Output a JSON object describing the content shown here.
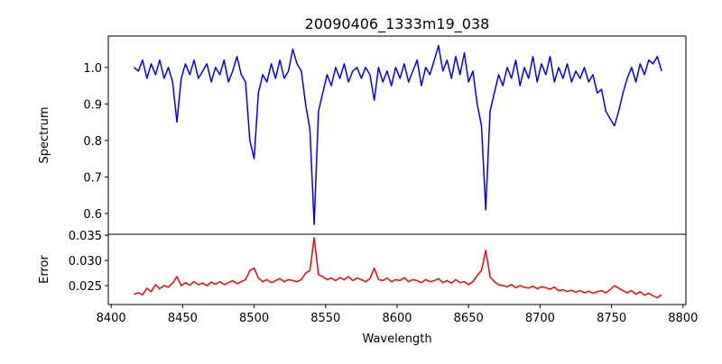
{
  "chart_data": [
    {
      "type": "line",
      "panel": "top",
      "title": "20090406_1333m19_038",
      "xlabel": "",
      "ylabel": "Spectrum",
      "xlim": [
        8398,
        8802
      ],
      "ylim": [
        0.543,
        1.086
      ],
      "yticks": [
        0.6,
        0.7,
        0.8,
        0.9,
        1.0
      ],
      "ytick_labels": [
        "0.6",
        "0.7",
        "0.8",
        "0.9",
        "1.0"
      ],
      "series": [
        {
          "name": "Spectrum",
          "color": "#0000ff",
          "x_start": 8416,
          "x_step": 3,
          "values": [
            1.0,
            0.99,
            1.02,
            0.97,
            1.01,
            0.98,
            1.02,
            0.97,
            1.0,
            0.96,
            0.85,
            0.97,
            1.01,
            0.98,
            1.02,
            0.97,
            0.99,
            1.01,
            0.96,
            1.0,
            0.98,
            1.02,
            0.96,
            0.99,
            1.03,
            0.98,
            0.96,
            0.8,
            0.75,
            0.93,
            0.98,
            0.96,
            1.01,
            0.97,
            1.02,
            0.97,
            0.99,
            1.05,
            1.01,
            0.99,
            0.9,
            0.83,
            0.57,
            0.88,
            0.93,
            0.98,
            0.95,
            1.0,
            0.97,
            1.01,
            0.96,
            0.99,
            1.0,
            0.97,
            1.0,
            0.98,
            0.91,
            1.0,
            0.96,
            0.99,
            0.95,
            1.0,
            0.97,
            1.01,
            0.96,
            0.99,
            1.02,
            0.95,
            1.0,
            0.98,
            1.02,
            1.06,
            0.99,
            1.02,
            0.97,
            1.03,
            0.98,
            1.04,
            0.96,
            0.99,
            0.9,
            0.84,
            0.61,
            0.88,
            0.93,
            0.98,
            0.95,
            1.0,
            0.97,
            1.02,
            0.95,
            1.0,
            0.97,
            1.03,
            0.96,
            1.01,
            0.98,
            1.03,
            0.96,
            1.0,
            0.97,
            1.01,
            0.96,
            0.99,
            0.97,
            1.0,
            0.96,
            0.98,
            0.93,
            0.94,
            0.88,
            0.86,
            0.84,
            0.88,
            0.93,
            0.97,
            1.0,
            0.96,
            1.01,
            0.98,
            1.02,
            1.01,
            1.03,
            0.99
          ]
        }
      ]
    },
    {
      "type": "line",
      "panel": "bottom",
      "xlabel": "Wavelength",
      "ylabel": "Error",
      "xlim": [
        8398,
        8802
      ],
      "ylim": [
        0.02125,
        0.0352
      ],
      "xticks": [
        8400,
        8450,
        8500,
        8550,
        8600,
        8650,
        8700,
        8750,
        8800
      ],
      "xtick_labels": [
        "8400",
        "8450",
        "8500",
        "8550",
        "8600",
        "8650",
        "8700",
        "8750",
        "8800"
      ],
      "yticks": [
        0.025,
        0.03,
        0.035
      ],
      "ytick_labels": [
        "0.025",
        "0.030",
        "0.035"
      ],
      "series": [
        {
          "name": "Error",
          "color": "#ff0000",
          "x_start": 8416,
          "x_step": 3,
          "values": [
            0.0233,
            0.0236,
            0.0232,
            0.0245,
            0.0238,
            0.0252,
            0.0244,
            0.025,
            0.0247,
            0.0255,
            0.0268,
            0.025,
            0.0256,
            0.0251,
            0.0258,
            0.0252,
            0.0255,
            0.025,
            0.0257,
            0.0253,
            0.0258,
            0.0252,
            0.0256,
            0.026,
            0.0254,
            0.0258,
            0.0262,
            0.028,
            0.0285,
            0.0265,
            0.0258,
            0.0262,
            0.0256,
            0.026,
            0.0264,
            0.0258,
            0.0262,
            0.026,
            0.0258,
            0.0262,
            0.0275,
            0.028,
            0.0345,
            0.0272,
            0.0268,
            0.0262,
            0.0265,
            0.026,
            0.0266,
            0.0262,
            0.0268,
            0.026,
            0.0265,
            0.0262,
            0.0258,
            0.0264,
            0.0285,
            0.0262,
            0.026,
            0.0265,
            0.0258,
            0.0262,
            0.026,
            0.0266,
            0.0258,
            0.0262,
            0.026,
            0.0256,
            0.0262,
            0.0258,
            0.026,
            0.0264,
            0.0256,
            0.026,
            0.0255,
            0.0262,
            0.0256,
            0.0258,
            0.0252,
            0.0258,
            0.027,
            0.028,
            0.032,
            0.0268,
            0.0258,
            0.0252,
            0.025,
            0.0248,
            0.0252,
            0.0246,
            0.025,
            0.0247,
            0.0245,
            0.0249,
            0.0244,
            0.0248,
            0.0246,
            0.0243,
            0.0247,
            0.024,
            0.0242,
            0.0238,
            0.0241,
            0.0237,
            0.024,
            0.0236,
            0.0239,
            0.0235,
            0.0238,
            0.024,
            0.0236,
            0.0242,
            0.025,
            0.0245,
            0.024,
            0.0236,
            0.024,
            0.0233,
            0.0238,
            0.0231,
            0.0235,
            0.023,
            0.0226,
            0.0232
          ]
        }
      ]
    }
  ]
}
